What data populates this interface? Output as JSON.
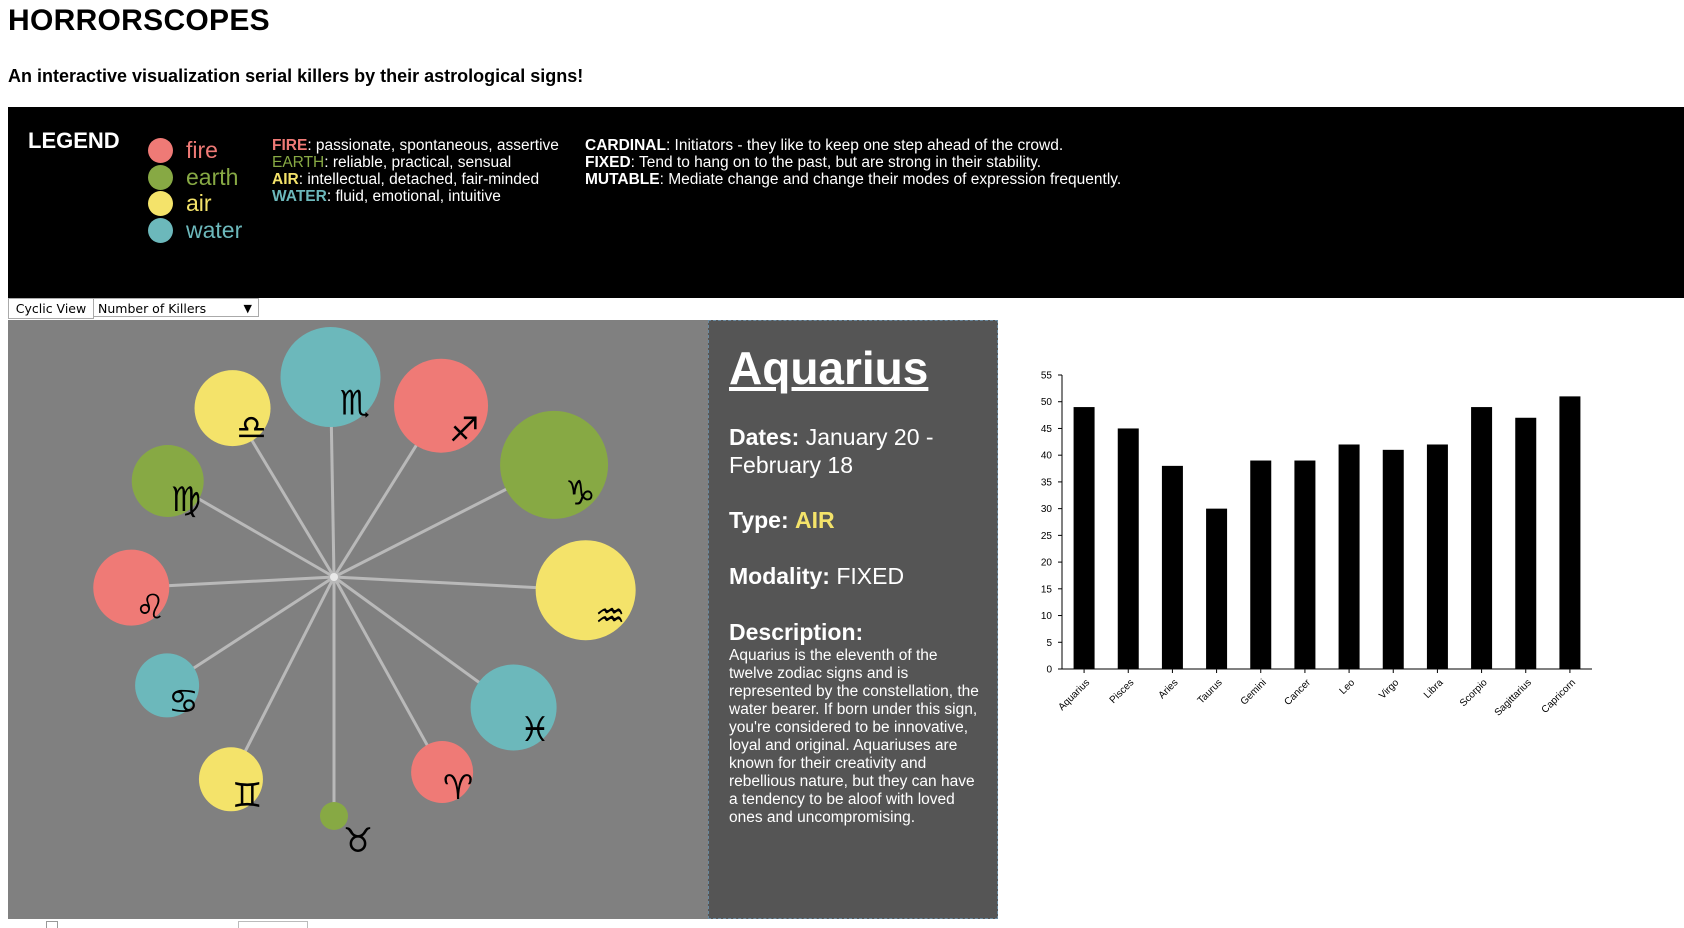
{
  "header": {
    "title": "HORRORSCOPES",
    "subtitle": "An interactive visualization serial killers by their astrological signs!"
  },
  "legend": {
    "title": "LEGEND",
    "elements": [
      {
        "label": "fire",
        "color": "#ef7a76"
      },
      {
        "label": "earth",
        "color": "#87a944"
      },
      {
        "label": "air",
        "color": "#f4e36a"
      },
      {
        "label": "water",
        "color": "#6cb8bb"
      }
    ],
    "element_desc": [
      {
        "key": "FIRE",
        "text": ": passionate, spontaneous, assertive",
        "color": "#ef7a76"
      },
      {
        "key": "EARTH",
        "text": ": reliable, practical, sensual",
        "color": "#87a944"
      },
      {
        "key": "AIR",
        "text": ": intellectual, detached, fair-minded",
        "color": "#f4e36a"
      },
      {
        "key": "WATER",
        "text": ": fluid, emotional, intuitive",
        "color": "#6cb8bb"
      }
    ],
    "modality_desc": [
      {
        "key": "CARDINAL",
        "text": ": Initiators - they like to keep one step ahead of the crowd."
      },
      {
        "key": "FIXED",
        "text": ": Tend to hang on to the past, but are strong in their stability."
      },
      {
        "key": "MUTABLE",
        "text": ": Mediate change and change their modes of expression frequently."
      }
    ]
  },
  "controls": {
    "cyclic_button": "Cyclic View",
    "metric_select": "Number of Killers"
  },
  "wheel": {
    "signs": [
      {
        "name": "Scorpio",
        "glyph": "♏",
        "element": "water"
      },
      {
        "name": "Sagittarius",
        "glyph": "♐",
        "element": "fire"
      },
      {
        "name": "Capricorn",
        "glyph": "♑",
        "element": "earth"
      },
      {
        "name": "Aquarius",
        "glyph": "♒",
        "element": "air"
      },
      {
        "name": "Pisces",
        "glyph": "♓",
        "element": "water"
      },
      {
        "name": "Aries",
        "glyph": "♈",
        "element": "fire"
      },
      {
        "name": "Taurus",
        "glyph": "♉",
        "element": "earth"
      },
      {
        "name": "Gemini",
        "glyph": "♊",
        "element": "air"
      },
      {
        "name": "Cancer",
        "glyph": "♋",
        "element": "water"
      },
      {
        "name": "Leo",
        "glyph": "♌",
        "element": "fire"
      },
      {
        "name": "Virgo",
        "glyph": "♍",
        "element": "earth"
      },
      {
        "name": "Libra",
        "glyph": "♎",
        "element": "air"
      }
    ]
  },
  "info": {
    "name": "Aquarius",
    "dates_label": "Dates:",
    "dates_value": "January 20 - February 18",
    "type_label": "Type:",
    "type_value": "AIR",
    "type_color": "#f4e36a",
    "modality_label": "Modality:",
    "modality_value": "FIXED",
    "description_label": "Description:",
    "description": "Aquarius is the eleventh of the twelve zodiac signs and is represented by the constellation, the water bearer. If born under this sign, you're considered to be innovative, loyal and original. Aquariuses are known for their creativity and rebellious nature, but they can have a tendency to be aloof with loved ones and uncompromising."
  },
  "chart_data": {
    "type": "bar",
    "title": "",
    "xlabel": "",
    "ylabel": "",
    "categories": [
      "Aquarius",
      "Pisces",
      "Aries",
      "Taurus",
      "Gemini",
      "Cancer",
      "Leo",
      "Virgo",
      "Libra",
      "Scorpio",
      "Sagittarius",
      "Capricorn"
    ],
    "values": [
      49,
      45,
      38,
      30,
      39,
      39,
      42,
      41,
      42,
      49,
      47,
      51
    ],
    "ylim": [
      0,
      55
    ],
    "yticks": [
      0,
      5,
      10,
      15,
      20,
      25,
      30,
      35,
      40,
      45,
      50,
      55
    ],
    "bar_color": "#000000",
    "grid": false
  }
}
